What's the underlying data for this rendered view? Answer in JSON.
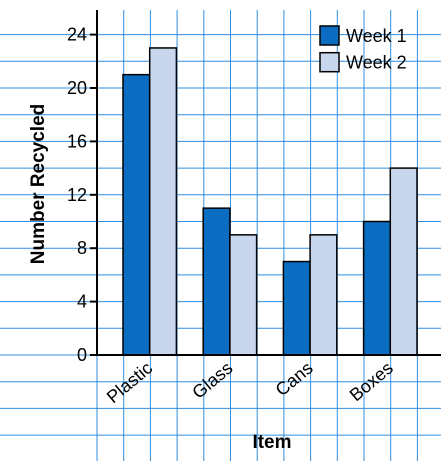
{
  "chart_data": {
    "type": "bar",
    "title": "",
    "xlabel": "Item",
    "ylabel": "Number Recycled",
    "categories": [
      "Plastic",
      "Glass",
      "Cans",
      "Boxes"
    ],
    "series": [
      {
        "name": "Week 1",
        "values": [
          21,
          11,
          7,
          10
        ],
        "color": "#0a6dc2"
      },
      {
        "name": "Week 2",
        "values": [
          23,
          9,
          9,
          14
        ],
        "color": "#c9d7ee"
      }
    ],
    "ylim": [
      0,
      24
    ],
    "yticks": [
      "0",
      "4",
      "8",
      "12",
      "16",
      "20",
      "24"
    ],
    "grid": true,
    "legend": "top-right"
  },
  "colors": {
    "grid": "#2f8fe0",
    "background": "#ffffff",
    "axis": "#000000",
    "bar_outline": "#000000"
  }
}
